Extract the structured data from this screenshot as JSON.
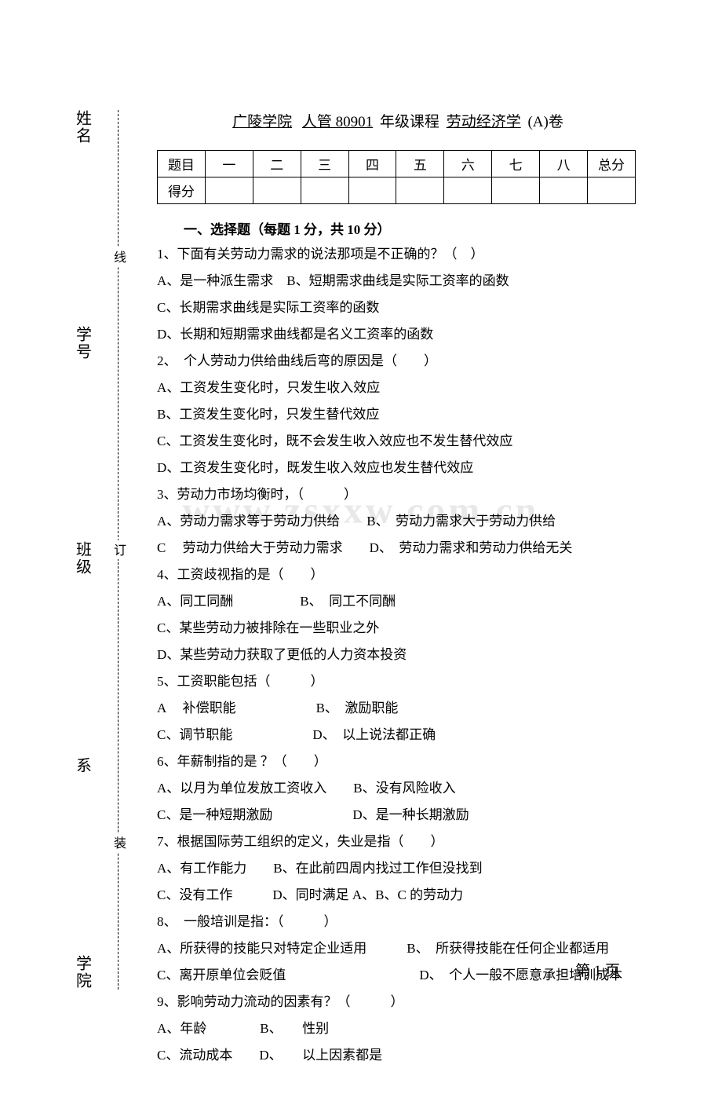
{
  "watermark": "www.zsxxw.com.cn",
  "title": {
    "college": "广陵学院",
    "class_prefix": "人管 80901",
    "grade_course_label": "年级课程",
    "course": "劳动经济学",
    "paper": "(A)卷"
  },
  "score_table": {
    "headers": [
      "题目",
      "一",
      "二",
      "三",
      "四",
      "五",
      "六",
      "七",
      "八",
      "总分"
    ],
    "row2_label": "得分"
  },
  "section1_header": "一、选择题（每题 1 分，共 10 分）",
  "binding": {
    "labels": [
      "学院",
      "系",
      "班级",
      "学号",
      "姓名"
    ],
    "marks": [
      "装",
      "订",
      "线"
    ]
  },
  "questions": [
    {
      "lines": [
        "1、下面有关劳动力需求的说法那项是不正确的？（　）",
        "A、是一种派生需求　B、短期需求曲线是实际工资率的函数",
        "C、长期需求曲线是实际工资率的函数",
        "D、长期和短期需求曲线都是名义工资率的函数"
      ]
    },
    {
      "lines": [
        "2、　个人劳动力供给曲线后弯的原因是（　　）",
        "A、工资发生变化时，只发生收入效应",
        "B、工资发生变化时，只发生替代效应",
        "C、工资发生变化时，既不会发生收入效应也不发生替代效应",
        "D、工资发生变化时，既发生收入效应也发生替代效应"
      ]
    },
    {
      "lines": [
        "3、劳动力市场均衡时，（　　　）",
        "A、劳动力需求等于劳动力供给　　B、　劳动力需求大于劳动力供给",
        "C　 劳动力供给大于劳动力需求　　D、　劳动力需求和劳动力供给无关"
      ]
    },
    {
      "lines": [
        "4、工资歧视指的是（　　）",
        "A、同工同酬　　　　　B、　同工不同酬",
        "C、某些劳动力被排除在一些职业之外",
        "D、某些劳动力获取了更低的人力资本投资"
      ]
    },
    {
      "lines": [
        "5、工资职能包括（　　　）",
        "A　 补偿职能　　　　　　B、　激励职能",
        "C、调节职能　　　　　　D、　以上说法都正确"
      ]
    },
    {
      "lines": [
        "6、年薪制指的是 ？（　　）",
        "A、以月为单位发放工资收入　　B、没有风险收入",
        "C、是一种短期激励　　　　　　D、是一种长期激励"
      ]
    },
    {
      "lines": [
        "7、根据国际劳工组织的定义，失业是指（　　）",
        "A、有工作能力　　B、在此前四周内找过工作但没找到",
        "C、没有工作　　　D、同时满足 A、B、C 的劳动力"
      ]
    },
    {
      "lines": [
        "8、　一般培训是指：（　　　）",
        "A、所获得的技能只对特定企业适用　　　B、　所获得技能在任何企业都适用",
        "C、离开原单位会贬值　　　　　　　　　　D、　个人一般不愿意承担培训成本"
      ]
    },
    {
      "lines": [
        "9、影响劳动力流动的因素有？（　　　）",
        "A、年龄　　　　B、　　性别",
        "C、流动成本　　D、　　以上因素都是"
      ]
    }
  ],
  "page_number": "第 1 页"
}
